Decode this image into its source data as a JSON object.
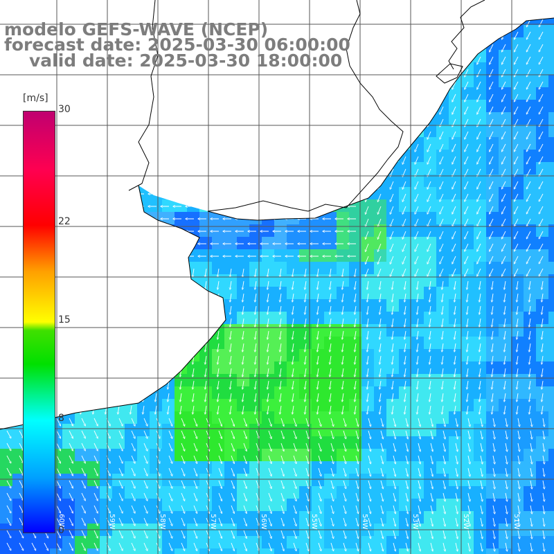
{
  "titles": {
    "line1": "modelo GEFS-WAVE (NCEP)",
    "line2": "forecast date: 2025-03-30 06:00:00",
    "line3": "valid date: 2025-03-30 18:00:00"
  },
  "colorbar": {
    "unit": "[m/s]",
    "ticks": [
      "30",
      "22",
      "15",
      "8",
      "0"
    ],
    "tick_values": [
      30,
      22,
      15,
      8,
      0
    ],
    "range": [
      0,
      30
    ]
  },
  "map": {
    "longitude_labels": [
      "60W",
      "59W",
      "58W",
      "57W",
      "56W",
      "55W",
      "54W",
      "53W",
      "52W",
      "51W"
    ],
    "colors": {
      "land": "#ffffff",
      "coastline": "#000000",
      "grid": "#555555",
      "arrows": "#ffffff"
    }
  }
}
